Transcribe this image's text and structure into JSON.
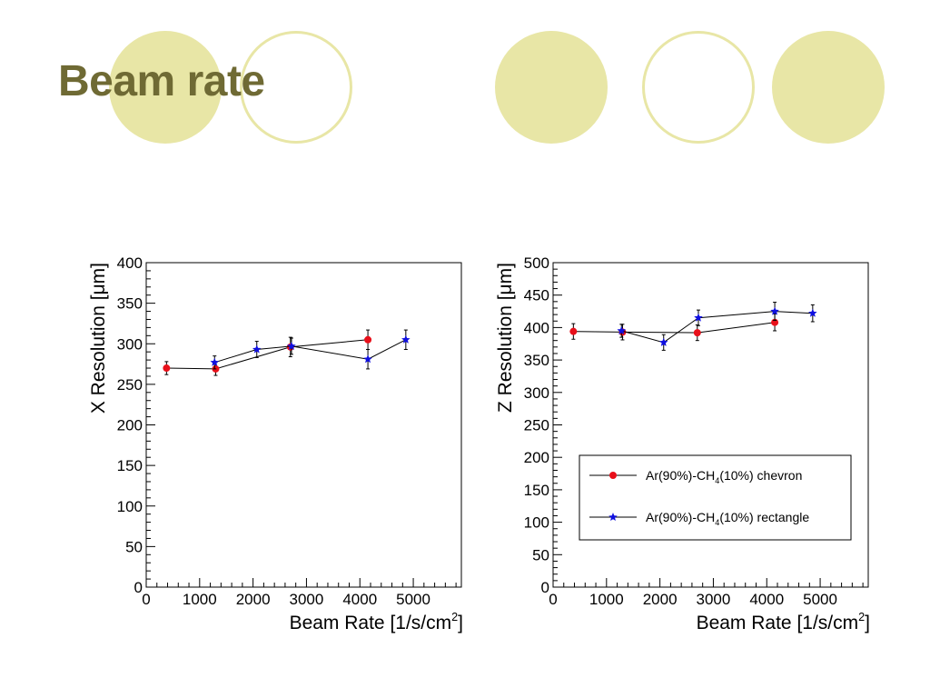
{
  "slide": {
    "title": "Beam rate",
    "colors": {
      "title": "#6f6a34",
      "decor": "#e8e6a6"
    }
  },
  "chart_data": [
    {
      "type": "scatter",
      "xlabel": "Beam Rate [1/s/cm²]",
      "ylabel": "X Resolution [μm]",
      "xlim": [
        0,
        5900
      ],
      "ylim": [
        0,
        400
      ],
      "xticks": [
        "0",
        "1000",
        "2000",
        "3000",
        "4000",
        "5000"
      ],
      "yticks": [
        "0",
        "50",
        "100",
        "150",
        "200",
        "250",
        "300",
        "350",
        "400"
      ],
      "legend": false,
      "series": [
        {
          "name": "Ar(90%)-CH4(10%) chevron",
          "color": "#e8101a",
          "marker": "circle",
          "x": [
            380,
            1300,
            2700,
            4150
          ],
          "y": [
            270,
            269,
            296,
            305
          ],
          "yerr": [
            8,
            8,
            12,
            12
          ]
        },
        {
          "name": "Ar(90%)-CH4(10%) rectangle",
          "color": "#1010e0",
          "marker": "star",
          "x": [
            1280,
            2070,
            2720,
            4150,
            4860
          ],
          "y": [
            277,
            293,
            297,
            281,
            305
          ],
          "yerr": [
            8,
            10,
            10,
            12,
            12
          ]
        }
      ]
    },
    {
      "type": "scatter",
      "xlabel": "Beam Rate [1/s/cm²]",
      "ylabel": "Z Resolution [μm]",
      "xlim": [
        0,
        5900
      ],
      "ylim": [
        0,
        500
      ],
      "xticks": [
        "0",
        "1000",
        "2000",
        "3000",
        "4000",
        "5000"
      ],
      "yticks": [
        "0",
        "50",
        "100",
        "150",
        "200",
        "250",
        "300",
        "350",
        "400",
        "450",
        "500"
      ],
      "legend": true,
      "legend_position": "lower-right",
      "series": [
        {
          "name": "Ar(90%)-CH4(10%) chevron",
          "color": "#e8101a",
          "marker": "circle",
          "x": [
            380,
            1300,
            2700,
            4150
          ],
          "y": [
            394,
            393,
            392,
            408
          ],
          "yerr": [
            12,
            12,
            12,
            13
          ]
        },
        {
          "name": "Ar(90%)-CH4(10%) rectangle",
          "color": "#1010e0",
          "marker": "star",
          "x": [
            1280,
            2070,
            2720,
            4150,
            4860
          ],
          "y": [
            395,
            377,
            415,
            425,
            422
          ],
          "yerr": [
            10,
            12,
            12,
            14,
            13
          ]
        }
      ]
    }
  ]
}
